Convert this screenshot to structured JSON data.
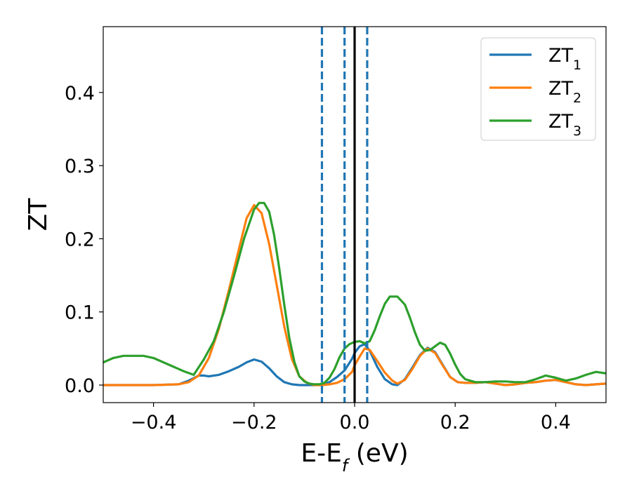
{
  "chart_data": {
    "type": "line",
    "xlabel": {
      "main": "E-E",
      "sub": "f",
      "unit": " (eV)"
    },
    "ylabel": "ZT",
    "xlim": [
      -0.5,
      0.5
    ],
    "ylim": [
      -0.024,
      0.49
    ],
    "xticks": [
      -0.4,
      -0.2,
      0.0,
      0.2,
      0.4
    ],
    "xtick_labels": [
      "−0.4",
      "−0.2",
      "0.0",
      "0.2",
      "0.4"
    ],
    "yticks": [
      0.0,
      0.1,
      0.2,
      0.3,
      0.4
    ],
    "ytick_labels": [
      "0.0",
      "0.1",
      "0.2",
      "0.3",
      "0.4"
    ],
    "grid": false,
    "legend_position": "top-right",
    "series": [
      {
        "name": "ZT",
        "sub": "1",
        "color": "#1f77b4",
        "x": [
          -0.5,
          -0.45,
          -0.4,
          -0.35,
          -0.33,
          -0.31,
          -0.3,
          -0.29,
          -0.27,
          -0.25,
          -0.23,
          -0.215,
          -0.2,
          -0.185,
          -0.17,
          -0.155,
          -0.14,
          -0.125,
          -0.11,
          -0.095,
          -0.08,
          -0.065,
          -0.05,
          -0.035,
          -0.02,
          -0.005,
          0.0,
          0.01,
          0.02,
          0.03,
          0.045,
          0.06,
          0.075,
          0.085,
          0.1,
          0.115,
          0.13,
          0.145,
          0.16,
          0.175,
          0.19,
          0.205,
          0.22,
          0.24,
          0.26,
          0.28,
          0.3,
          0.32,
          0.34,
          0.36,
          0.38,
          0.4,
          0.42,
          0.44,
          0.46,
          0.48,
          0.5
        ],
        "y": [
          0.0,
          0.0,
          0.0,
          0.001,
          0.006,
          0.013,
          0.013,
          0.012,
          0.014,
          0.019,
          0.025,
          0.031,
          0.035,
          0.032,
          0.023,
          0.012,
          0.004,
          0.001,
          0.0,
          0.0,
          0.0,
          0.001,
          0.004,
          0.011,
          0.02,
          0.036,
          0.044,
          0.053,
          0.056,
          0.047,
          0.025,
          0.008,
          0.001,
          0.0,
          0.008,
          0.024,
          0.041,
          0.051,
          0.045,
          0.028,
          0.011,
          0.004,
          0.003,
          0.003,
          0.004,
          0.002,
          0.0,
          0.001,
          0.003,
          0.004,
          0.006,
          0.007,
          0.004,
          0.001,
          0.0,
          0.001,
          0.002
        ]
      },
      {
        "name": "ZT",
        "sub": "2",
        "color": "#ff7f0e",
        "x": [
          -0.5,
          -0.45,
          -0.4,
          -0.35,
          -0.33,
          -0.31,
          -0.29,
          -0.27,
          -0.25,
          -0.23,
          -0.215,
          -0.2,
          -0.185,
          -0.17,
          -0.155,
          -0.14,
          -0.125,
          -0.11,
          -0.095,
          -0.08,
          -0.065,
          -0.05,
          -0.035,
          -0.02,
          -0.005,
          0.0,
          0.01,
          0.02,
          0.03,
          0.045,
          0.06,
          0.075,
          0.085,
          0.1,
          0.115,
          0.13,
          0.145,
          0.16,
          0.175,
          0.19,
          0.205,
          0.22,
          0.24,
          0.26,
          0.28,
          0.3,
          0.32,
          0.34,
          0.36,
          0.38,
          0.4,
          0.42,
          0.44,
          0.46,
          0.48,
          0.5
        ],
        "y": [
          0.0,
          0.0,
          0.0,
          0.001,
          0.004,
          0.013,
          0.037,
          0.077,
          0.13,
          0.186,
          0.228,
          0.246,
          0.235,
          0.193,
          0.137,
          0.08,
          0.036,
          0.012,
          0.003,
          0.0,
          0.0,
          0.001,
          0.003,
          0.008,
          0.018,
          0.027,
          0.039,
          0.05,
          0.048,
          0.033,
          0.017,
          0.006,
          0.002,
          0.007,
          0.022,
          0.04,
          0.05,
          0.044,
          0.027,
          0.011,
          0.004,
          0.003,
          0.003,
          0.004,
          0.002,
          0.0,
          0.001,
          0.003,
          0.004,
          0.006,
          0.007,
          0.004,
          0.001,
          0.0,
          0.001,
          0.002
        ]
      },
      {
        "name": "ZT",
        "sub": "3",
        "color": "#2ca02c",
        "x": [
          -0.5,
          -0.48,
          -0.46,
          -0.44,
          -0.42,
          -0.4,
          -0.38,
          -0.36,
          -0.34,
          -0.32,
          -0.3,
          -0.28,
          -0.26,
          -0.24,
          -0.22,
          -0.2,
          -0.19,
          -0.18,
          -0.17,
          -0.16,
          -0.15,
          -0.14,
          -0.13,
          -0.12,
          -0.11,
          -0.1,
          -0.09,
          -0.08,
          -0.07,
          -0.06,
          -0.05,
          -0.04,
          -0.03,
          -0.02,
          -0.01,
          0.0,
          0.01,
          0.02,
          0.03,
          0.04,
          0.05,
          0.06,
          0.07,
          0.085,
          0.1,
          0.11,
          0.12,
          0.13,
          0.14,
          0.15,
          0.16,
          0.17,
          0.18,
          0.19,
          0.2,
          0.21,
          0.22,
          0.24,
          0.26,
          0.28,
          0.3,
          0.32,
          0.34,
          0.36,
          0.38,
          0.4,
          0.42,
          0.44,
          0.46,
          0.48,
          0.5
        ],
        "y": [
          0.031,
          0.037,
          0.04,
          0.04,
          0.04,
          0.037,
          0.031,
          0.025,
          0.019,
          0.014,
          0.035,
          0.06,
          0.1,
          0.149,
          0.2,
          0.24,
          0.249,
          0.249,
          0.237,
          0.205,
          0.16,
          0.11,
          0.065,
          0.032,
          0.012,
          0.005,
          0.002,
          0.001,
          0.001,
          0.003,
          0.01,
          0.022,
          0.038,
          0.05,
          0.056,
          0.059,
          0.06,
          0.057,
          0.06,
          0.075,
          0.094,
          0.111,
          0.121,
          0.121,
          0.11,
          0.092,
          0.072,
          0.055,
          0.047,
          0.048,
          0.053,
          0.058,
          0.055,
          0.043,
          0.028,
          0.015,
          0.008,
          0.004,
          0.004,
          0.005,
          0.005,
          0.004,
          0.004,
          0.008,
          0.013,
          0.01,
          0.006,
          0.009,
          0.014,
          0.018,
          0.016
        ]
      }
    ],
    "vlines": [
      {
        "x": -0.065,
        "color": "#1f77b4",
        "style": "dashed"
      },
      {
        "x": -0.02,
        "color": "#1f77b4",
        "style": "dashed"
      },
      {
        "x": 0.0,
        "color": "#000000",
        "style": "solid"
      },
      {
        "x": 0.025,
        "color": "#1f77b4",
        "style": "dashed"
      }
    ]
  }
}
